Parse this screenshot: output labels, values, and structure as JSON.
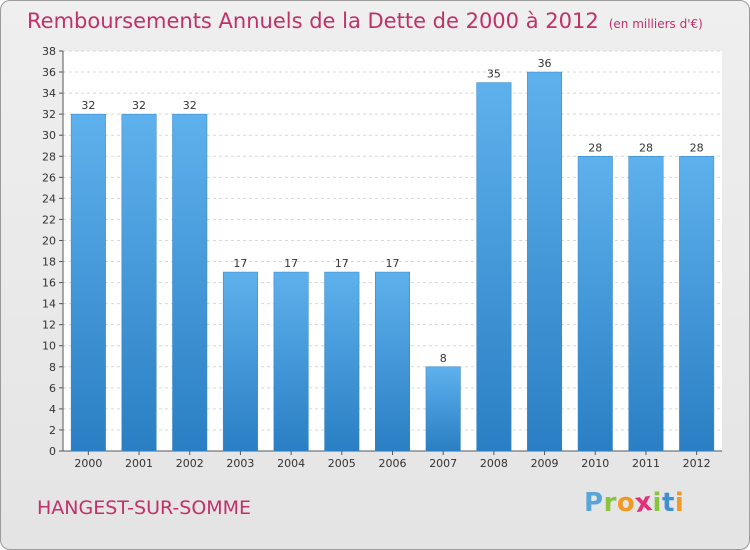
{
  "title": "Remboursements Annuels de la Dette de 2000 à 2012",
  "unit_note": "(en milliers d'€)",
  "commune": "HANGEST-SUR-SOMME",
  "logo": {
    "letters": [
      "P",
      "r",
      "o",
      "x",
      "i",
      "t",
      "i"
    ],
    "colors": [
      "#5aa5d8",
      "#8ac33f",
      "#f09a24",
      "#e2317a",
      "#8ac33f",
      "#3f8fd3",
      "#f09a24"
    ]
  },
  "chart_data": {
    "type": "bar",
    "categories": [
      "2000",
      "2001",
      "2002",
      "2003",
      "2004",
      "2005",
      "2006",
      "2007",
      "2008",
      "2009",
      "2010",
      "2011",
      "2012"
    ],
    "values": [
      32,
      32,
      32,
      17,
      17,
      17,
      17,
      8,
      35,
      36,
      28,
      28,
      28
    ],
    "ylim": [
      0,
      38
    ],
    "yticks": [
      0,
      2,
      4,
      6,
      8,
      10,
      12,
      14,
      16,
      18,
      20,
      22,
      24,
      26,
      28,
      30,
      32,
      34,
      36,
      38
    ],
    "grid": true,
    "bar_color": "#4a9fe0"
  }
}
